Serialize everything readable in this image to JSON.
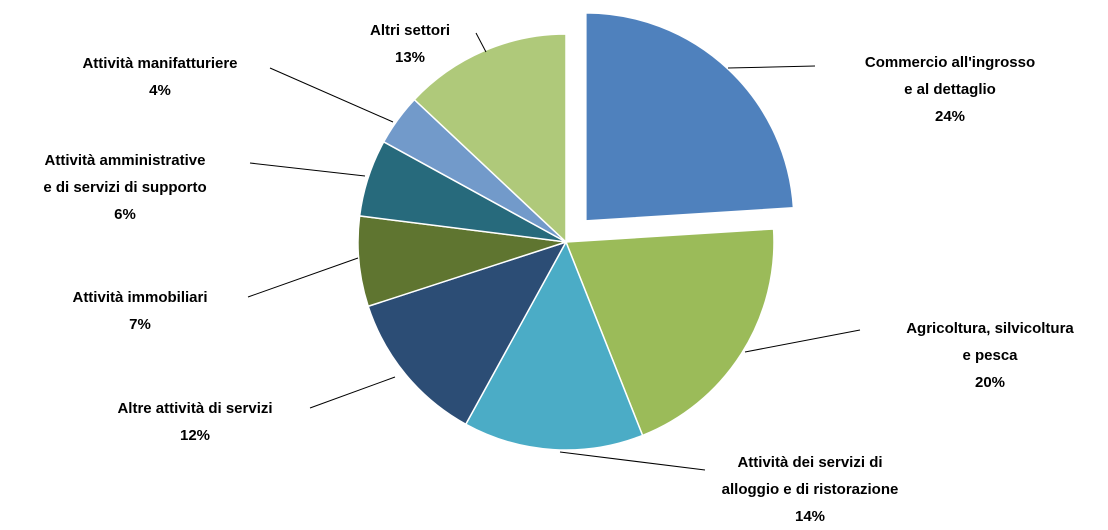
{
  "chart_data": {
    "type": "pie",
    "categories": [
      "Commercio all'ingrosso\ne al dettaglio",
      "Agricoltura, silvicoltura\ne pesca",
      "Attività dei servizi di\nalloggio e di ristorazione",
      "Altre attività di servizi",
      "Attività immobiliari",
      "Attività amministrative\ne di servizi di supporto",
      "Attività manifatturiere",
      "Altri settori"
    ],
    "values": [
      24,
      20,
      14,
      12,
      7,
      6,
      4,
      13
    ],
    "value_labels": [
      "24%",
      "20%",
      "14%",
      "12%",
      "7%",
      "6%",
      "4%",
      "13%"
    ],
    "colors": [
      "#4f81bd",
      "#9bbb59",
      "#4bacc6",
      "#2c4d75",
      "#5f7530",
      "#276a7c",
      "#729aca",
      "#afc97a"
    ]
  }
}
